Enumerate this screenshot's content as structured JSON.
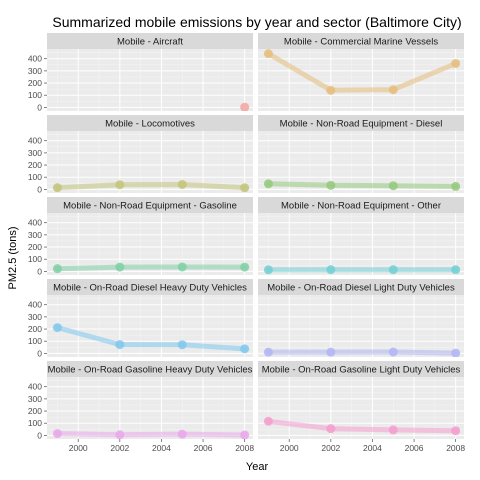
{
  "chart_data": {
    "type": "line",
    "title": "Summarized mobile emissions by year and sector (Baltimore City)",
    "xlabel": "Year",
    "ylabel": "PM2.5 (tons)",
    "x_ticks": [
      2000,
      2002,
      2004,
      2006,
      2008
    ],
    "y_ticks": [
      0,
      100,
      200,
      300,
      400
    ],
    "xlim": [
      1998.5,
      2008.4
    ],
    "ylim": [
      -30,
      480
    ],
    "layout": "facet grid, 2 columns x 5 rows, shared axes",
    "grid": true,
    "legend": "none",
    "panels": [
      {
        "name": "Mobile - Aircraft",
        "color": "#f4a3a0",
        "x": [
          2008
        ],
        "y": [
          1
        ]
      },
      {
        "name": "Mobile - Commercial Marine Vessels",
        "color": "#e5bd7c",
        "x": [
          1999,
          2002,
          2005,
          2008
        ],
        "y": [
          442,
          140,
          145,
          361
        ]
      },
      {
        "name": "Mobile - Locomotives",
        "color": "#c2c47a",
        "x": [
          1999,
          2002,
          2005,
          2008
        ],
        "y": [
          14,
          38,
          40,
          13
        ]
      },
      {
        "name": "Mobile - Non-Road Equipment - Diesel",
        "color": "#94c97e",
        "x": [
          1999,
          2002,
          2005,
          2008
        ],
        "y": [
          46,
          33,
          30,
          24
        ]
      },
      {
        "name": "Mobile - Non-Road Equipment - Gasoline",
        "color": "#7fcfa5",
        "x": [
          1999,
          2002,
          2005,
          2008
        ],
        "y": [
          22,
          35,
          36,
          35
        ]
      },
      {
        "name": "Mobile - Non-Road Equipment - Other",
        "color": "#72cfd3",
        "x": [
          1999,
          2002,
          2005,
          2008
        ],
        "y": [
          13,
          14,
          14,
          14
        ]
      },
      {
        "name": "Mobile - On-Road Diesel Heavy Duty Vehicles",
        "color": "#80c8ec",
        "x": [
          1999,
          2002,
          2005,
          2008
        ],
        "y": [
          212,
          72,
          71,
          37
        ]
      },
      {
        "name": "Mobile - On-Road Diesel Light Duty Vehicles",
        "color": "#b1b5f3",
        "x": [
          1999,
          2002,
          2005,
          2008
        ],
        "y": [
          10,
          10,
          11,
          2
        ]
      },
      {
        "name": "Mobile - On-Road Gasoline Heavy Duty Vehicles",
        "color": "#e9a7ea",
        "x": [
          1999,
          2002,
          2005,
          2008
        ],
        "y": [
          15,
          5,
          10,
          3
        ]
      },
      {
        "name": "Mobile - On-Road Gasoline Light Duty Vehicles",
        "color": "#f59ccd",
        "x": [
          1999,
          2002,
          2005,
          2008
        ],
        "y": [
          116,
          55,
          45,
          38
        ]
      }
    ]
  }
}
